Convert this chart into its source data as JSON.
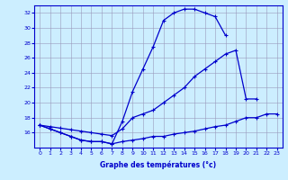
{
  "background_color": "#cceeff",
  "line_color": "#0000cc",
  "xlabel": "Graphe des températures (°c)",
  "top_x": [
    0,
    1,
    2,
    3,
    4,
    5,
    6,
    7,
    8,
    9,
    10,
    11,
    12,
    13,
    14,
    15,
    16,
    17,
    18
  ],
  "top_y": [
    17.0,
    16.5,
    16.0,
    15.5,
    15.0,
    14.8,
    14.8,
    14.5,
    17.5,
    21.5,
    24.5,
    27.5,
    31.0,
    32.0,
    32.5,
    32.5,
    32.0,
    31.5,
    29.0
  ],
  "mid_x": [
    0,
    1,
    2,
    3,
    4,
    5,
    6,
    7,
    8,
    9,
    10,
    11,
    12,
    13,
    14,
    15,
    16,
    17,
    18,
    19,
    20,
    21
  ],
  "mid_y": [
    17.0,
    16.8,
    16.6,
    16.4,
    16.2,
    16.0,
    15.8,
    15.6,
    16.5,
    18.0,
    18.5,
    19.0,
    20.0,
    21.0,
    22.0,
    23.5,
    24.5,
    25.5,
    26.5,
    27.0,
    20.5,
    20.5
  ],
  "bot_x": [
    0,
    1,
    2,
    3,
    4,
    5,
    6,
    7,
    8,
    9,
    10,
    11,
    12,
    13,
    14,
    15,
    16,
    17,
    18,
    19,
    20,
    21,
    22,
    23
  ],
  "bot_y": [
    17.0,
    16.5,
    16.0,
    15.5,
    15.0,
    14.8,
    14.8,
    14.5,
    14.8,
    15.0,
    15.2,
    15.5,
    15.5,
    15.8,
    16.0,
    16.2,
    16.5,
    16.8,
    17.0,
    17.5,
    18.0,
    18.0,
    18.5,
    18.5
  ],
  "ylim_min": 14,
  "ylim_max": 33,
  "yticks": [
    16,
    18,
    20,
    22,
    24,
    26,
    28,
    30,
    32
  ],
  "xlim_min": -0.5,
  "xlim_max": 23.5
}
